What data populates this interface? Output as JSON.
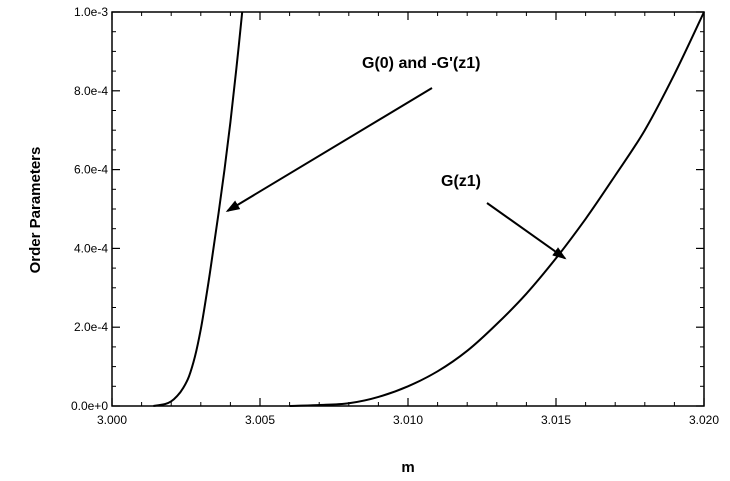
{
  "chart_data": {
    "type": "line",
    "title": "",
    "xlabel": "m",
    "ylabel": "Order Parameters",
    "xlim": [
      3.0,
      3.02
    ],
    "ylim": [
      0,
      0.001
    ],
    "x_ticks": [
      "3.000",
      "3.005",
      "3.010",
      "3.015",
      "3.020"
    ],
    "y_ticks": [
      "0.0e+0",
      "2.0e-4",
      "4.0e-4",
      "6.0e-4",
      "8.0e-4",
      "1.0e-3"
    ],
    "grid": false,
    "series": [
      {
        "name": "G(0) and -G'(z1)",
        "x": [
          3.0014,
          3.0018,
          3.002,
          3.0022,
          3.0024,
          3.0026,
          3.0028,
          3.003,
          3.0032,
          3.0034,
          3.0036,
          3.0038,
          3.004,
          3.0042,
          3.0044
        ],
        "y": [
          0.0,
          5e-06,
          1.2e-05,
          2.5e-05,
          4.5e-05,
          7.5e-05,
          0.000125,
          0.000195,
          0.000285,
          0.000385,
          0.00049,
          0.0006,
          0.00072,
          0.000855,
          0.001
        ]
      },
      {
        "name": "G(z1)",
        "x": [
          3.006,
          3.007,
          3.008,
          3.009,
          3.01,
          3.011,
          3.012,
          3.013,
          3.014,
          3.015,
          3.016,
          3.017,
          3.018,
          3.019,
          3.02
        ],
        "y": [
          0.0,
          2.5e-06,
          7e-06,
          2.3e-05,
          5e-05,
          8.8e-05,
          0.00014,
          0.000208,
          0.000285,
          0.000375,
          0.000475,
          0.000585,
          0.0007,
          0.000842,
          0.001
        ]
      }
    ],
    "annotations": [
      {
        "text": "G(0) and -G'(z1)",
        "arrow_to": [
          3.0039,
          0.000495
        ]
      },
      {
        "text": "G(z1)",
        "arrow_to": [
          3.0153,
          0.000375
        ]
      }
    ]
  }
}
